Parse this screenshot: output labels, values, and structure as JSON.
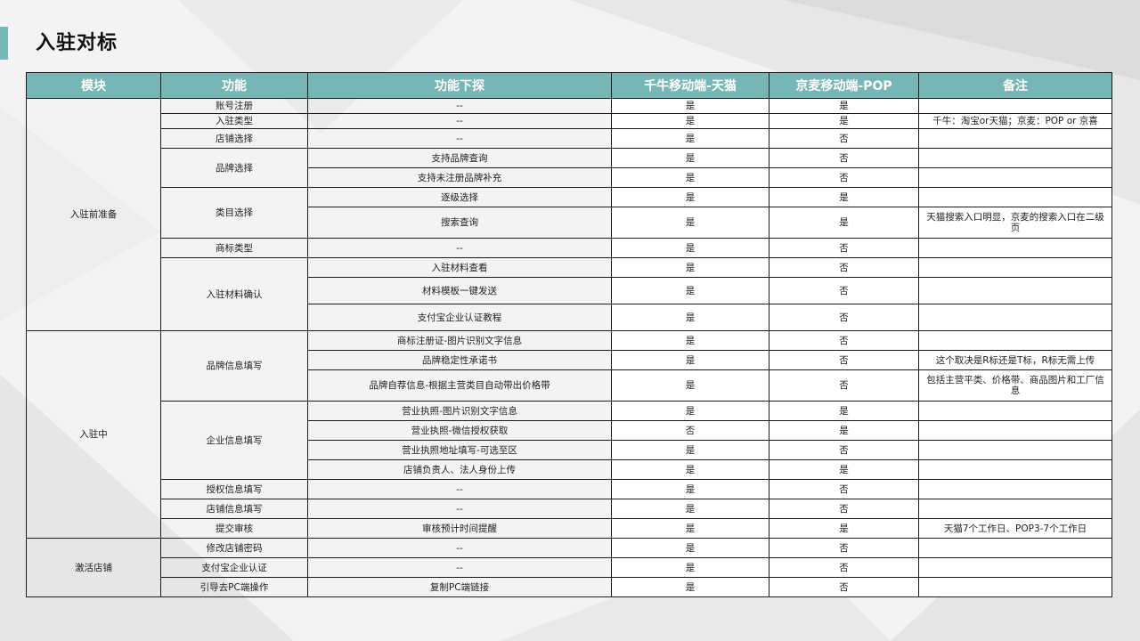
{
  "slide": {
    "title": "入驻对标",
    "accent_color": "#74b8b6",
    "header_color": "#76b7b5"
  },
  "table": {
    "headers": [
      "模块",
      "功能",
      "功能下探",
      "千牛移动端-天猫",
      "京麦移动端-POP",
      "备注"
    ],
    "groups": [
      {
        "module": "入驻前准备",
        "functions": [
          {
            "name": "账号注册",
            "rows": [
              {
                "detail": "--",
                "tmall": "是",
                "jd": "是",
                "note": ""
              }
            ]
          },
          {
            "name": "入驻类型",
            "rows": [
              {
                "detail": "--",
                "tmall": "是",
                "jd": "是",
                "note": "千牛：淘宝or天猫；京麦：POP or 京喜"
              }
            ]
          },
          {
            "name": "店铺选择",
            "rows": [
              {
                "detail": "--",
                "tmall": "是",
                "jd": "否",
                "note": ""
              }
            ]
          },
          {
            "name": "品牌选择",
            "rows": [
              {
                "detail": "支持品牌查询",
                "tmall": "是",
                "jd": "否",
                "note": ""
              },
              {
                "detail": "支持未注册品牌补充",
                "tmall": "是",
                "jd": "否",
                "note": ""
              }
            ]
          },
          {
            "name": "类目选择",
            "rows": [
              {
                "detail": "逐级选择",
                "tmall": "是",
                "jd": "是",
                "note": ""
              },
              {
                "detail": "搜索查询",
                "tmall": "是",
                "jd": "是",
                "note": "天猫搜索入口明显，京麦的搜索入口在二级页"
              }
            ]
          },
          {
            "name": "商标类型",
            "rows": [
              {
                "detail": "--",
                "tmall": "是",
                "jd": "否",
                "note": ""
              }
            ]
          },
          {
            "name": "入驻材料确认",
            "rows": [
              {
                "detail": "入驻材料查看",
                "tmall": "是",
                "jd": "否",
                "note": ""
              },
              {
                "detail": "材料模板一键发送",
                "tmall": "是",
                "jd": "否",
                "note": ""
              },
              {
                "detail": "支付宝企业认证教程",
                "tmall": "是",
                "jd": "否",
                "note": ""
              }
            ]
          }
        ]
      },
      {
        "module": "入驻中",
        "functions": [
          {
            "name": "品牌信息填写",
            "rows": [
              {
                "detail": "商标注册证-图片识别文字信息",
                "tmall": "是",
                "jd": "否",
                "note": ""
              },
              {
                "detail": "品牌稳定性承诺书",
                "tmall": "是",
                "jd": "否",
                "note": "这个取决是R标还是T标，R标无需上传"
              },
              {
                "detail": "品牌自荐信息-根据主营类目自动带出价格带",
                "tmall": "是",
                "jd": "否",
                "note": "包括主营平类、价格带、商品图片和工厂信息"
              }
            ]
          },
          {
            "name": "企业信息填写",
            "rows": [
              {
                "detail": "营业执照-图片识别文字信息",
                "tmall": "是",
                "jd": "是",
                "note": ""
              },
              {
                "detail": "营业执照-微信授权获取",
                "tmall": "否",
                "jd": "是",
                "note": ""
              },
              {
                "detail": "营业执照地址填写-可选至区",
                "tmall": "是",
                "jd": "否",
                "note": ""
              },
              {
                "detail": "店铺负责人、法人身份上传",
                "tmall": "是",
                "jd": "是",
                "note": ""
              }
            ]
          },
          {
            "name": "授权信息填写",
            "rows": [
              {
                "detail": "--",
                "tmall": "是",
                "jd": "否",
                "note": ""
              }
            ]
          },
          {
            "name": "店铺信息填写",
            "rows": [
              {
                "detail": "--",
                "tmall": "是",
                "jd": "否",
                "note": ""
              }
            ]
          },
          {
            "name": "提交审核",
            "rows": [
              {
                "detail": "审核预计时间提醒",
                "tmall": "是",
                "jd": "是",
                "note": "天猫7个工作日、POP3-7个工作日"
              }
            ]
          }
        ]
      },
      {
        "module": "激活店铺",
        "functions": [
          {
            "name": "修改店铺密码",
            "rows": [
              {
                "detail": "--",
                "tmall": "是",
                "jd": "否",
                "note": ""
              }
            ]
          },
          {
            "name": "支付宝企业认证",
            "rows": [
              {
                "detail": "--",
                "tmall": "是",
                "jd": "否",
                "note": ""
              }
            ]
          },
          {
            "name": "引导去PC端操作",
            "rows": [
              {
                "detail": "复制PC端链接",
                "tmall": "是",
                "jd": "否",
                "note": ""
              }
            ]
          }
        ]
      }
    ]
  }
}
